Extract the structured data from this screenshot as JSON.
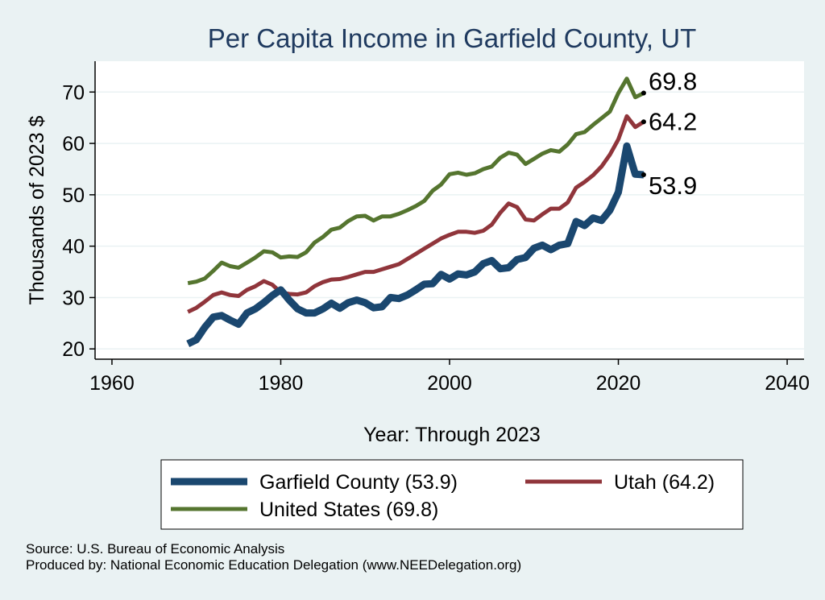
{
  "chart_data": {
    "type": "line",
    "title": "Per Capita Income in Garfield County, UT",
    "xlabel": "Year: Through 2023",
    "ylabel": "Thousands of 2023 $",
    "xlim": [
      1958,
      2042
    ],
    "ylim": [
      18,
      76
    ],
    "xticks": [
      1960,
      1980,
      2000,
      2020,
      2040
    ],
    "yticks": [
      20,
      30,
      40,
      50,
      60,
      70
    ],
    "grid": true,
    "legend_position": "bottom",
    "x": [
      1969,
      1970,
      1971,
      1972,
      1973,
      1974,
      1975,
      1976,
      1977,
      1978,
      1979,
      1980,
      1981,
      1982,
      1983,
      1984,
      1985,
      1986,
      1987,
      1988,
      1989,
      1990,
      1991,
      1992,
      1993,
      1994,
      1995,
      1996,
      1997,
      1998,
      1999,
      2000,
      2001,
      2002,
      2003,
      2004,
      2005,
      2006,
      2007,
      2008,
      2009,
      2010,
      2011,
      2012,
      2013,
      2014,
      2015,
      2016,
      2017,
      2018,
      2019,
      2020,
      2021,
      2022,
      2023
    ],
    "series": [
      {
        "name": "Garfield County",
        "legend_label": "Garfield County (53.9)",
        "end_label": "53.9",
        "color": "#1a476f",
        "width": 9,
        "values": [
          21.0,
          21.8,
          24.2,
          26.2,
          26.5,
          25.6,
          24.8,
          27.0,
          27.8,
          29.0,
          30.4,
          31.5,
          29.5,
          27.8,
          27.0,
          27.0,
          27.8,
          28.9,
          27.9,
          29.0,
          29.5,
          29.0,
          28.0,
          28.2,
          30.0,
          29.8,
          30.5,
          31.5,
          32.6,
          32.7,
          34.5,
          33.6,
          34.6,
          34.4,
          35.0,
          36.6,
          37.2,
          35.6,
          35.8,
          37.4,
          37.8,
          39.6,
          40.2,
          39.3,
          40.2,
          40.5,
          44.8,
          44.0,
          45.5,
          45.0,
          47.0,
          50.5,
          59.5,
          54.0,
          53.9
        ]
      },
      {
        "name": "Utah",
        "legend_label": "Utah (64.2)",
        "end_label": "64.2",
        "color": "#90353b",
        "width": 5,
        "values": [
          27.2,
          28.0,
          29.2,
          30.5,
          31.0,
          30.5,
          30.3,
          31.5,
          32.2,
          33.2,
          32.5,
          31.0,
          30.7,
          30.6,
          31.0,
          32.2,
          33.0,
          33.5,
          33.6,
          34.0,
          34.5,
          35.0,
          35.0,
          35.5,
          36.0,
          36.5,
          37.5,
          38.5,
          39.5,
          40.5,
          41.5,
          42.2,
          42.8,
          42.8,
          42.6,
          43.0,
          44.2,
          46.5,
          48.3,
          47.6,
          45.2,
          45.0,
          46.2,
          47.3,
          47.3,
          48.5,
          51.4,
          52.5,
          53.8,
          55.5,
          57.8,
          60.8,
          65.3,
          63.2,
          64.2
        ]
      },
      {
        "name": "United States",
        "legend_label": "United States (69.8)",
        "end_label": "69.8",
        "color": "#55752f",
        "width": 5,
        "values": [
          32.8,
          33.1,
          33.7,
          35.2,
          36.8,
          36.1,
          35.8,
          36.8,
          37.8,
          39.0,
          38.8,
          37.8,
          38.0,
          37.9,
          38.8,
          40.7,
          41.8,
          43.2,
          43.6,
          44.9,
          45.8,
          45.9,
          45.0,
          45.8,
          45.8,
          46.3,
          47.0,
          47.8,
          48.8,
          50.8,
          52.0,
          54.0,
          54.3,
          53.9,
          54.2,
          55.0,
          55.5,
          57.2,
          58.2,
          57.8,
          56.0,
          57.0,
          58.0,
          58.7,
          58.4,
          59.8,
          61.8,
          62.2,
          63.6,
          64.9,
          66.2,
          69.8,
          72.6,
          69.0,
          69.8
        ]
      }
    ],
    "source_note": "Source: U.S. Bureau of Economic Analysis",
    "produced_note": "Produced by: National Economic Education Delegation (www.NEEDelegation.org)"
  }
}
